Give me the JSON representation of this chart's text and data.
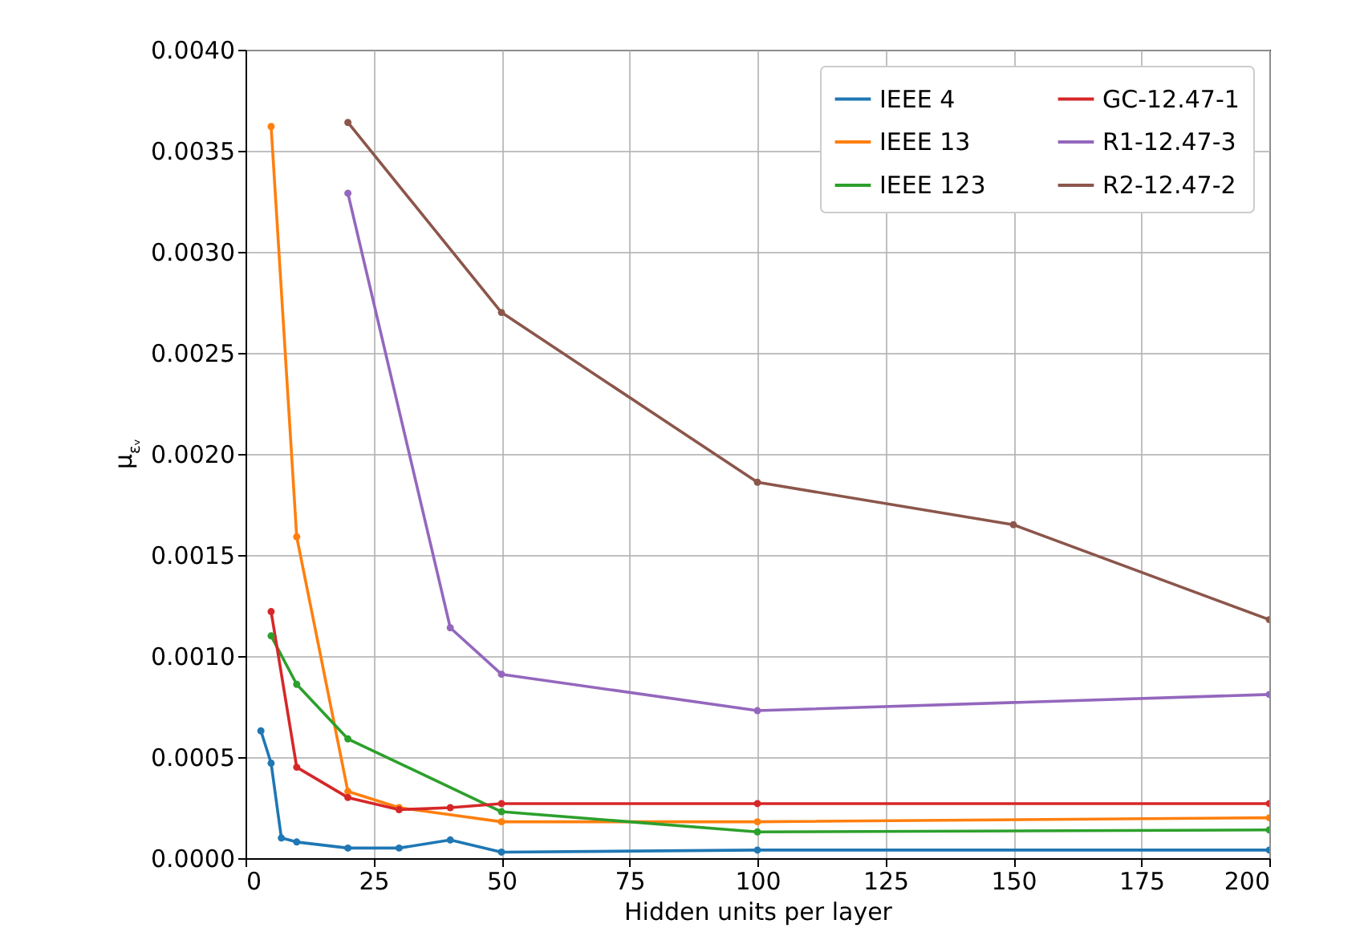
{
  "chart_data": {
    "type": "line",
    "xlabel": "Hidden units per layer",
    "ylabel": "μ$_{εᵥ}$",
    "xlim": [
      0,
      200
    ],
    "xticks": [
      0,
      25,
      50,
      75,
      100,
      125,
      150,
      175,
      200
    ],
    "ylim": [
      0,
      0.004
    ],
    "yticks": [
      {
        "value": 0,
        "label": "0.0000"
      },
      {
        "value": 0.0005,
        "label": "0.0005"
      },
      {
        "value": 0.001,
        "label": "0.0010"
      },
      {
        "value": 0.0015,
        "label": "0.0015"
      },
      {
        "value": 0.002,
        "label": "0.0020"
      },
      {
        "value": 0.0025,
        "label": "0.0025"
      },
      {
        "value": 0.003,
        "label": "0.0030"
      },
      {
        "value": 0.0035,
        "label": "0.0035"
      },
      {
        "value": 0.004,
        "label": "0.0040"
      }
    ],
    "grid": true,
    "legend": "top right",
    "marker": "circle",
    "line_style": "solid",
    "series": [
      {
        "name": "IEEE 4",
        "color": "#1f77b4",
        "x": [
          3,
          5,
          7,
          10,
          20,
          30,
          40,
          50,
          100,
          200
        ],
        "values": [
          0.00063,
          0.00047,
          0.0001,
          8e-05,
          5e-05,
          5e-05,
          9e-05,
          3e-05,
          4e-05,
          4e-05
        ]
      },
      {
        "name": "IEEE 13",
        "color": "#ff7f0e",
        "x": [
          5,
          10,
          20,
          30,
          50,
          100,
          200
        ],
        "values": [
          0.00362,
          0.00159,
          0.00033,
          0.00025,
          0.00018,
          0.00018,
          0.0002
        ]
      },
      {
        "name": "IEEE 123",
        "color": "#2ca02c",
        "x": [
          5,
          10,
          20,
          50,
          100,
          200
        ],
        "values": [
          0.0011,
          0.00086,
          0.00059,
          0.00023,
          0.00013,
          0.00014
        ]
      },
      {
        "name": "GC-12.47-1",
        "color": "#d62728",
        "x": [
          5,
          10,
          20,
          30,
          40,
          50,
          100,
          200
        ],
        "values": [
          0.00122,
          0.00045,
          0.0003,
          0.00024,
          0.00025,
          0.00027,
          0.00027,
          0.00027
        ]
      },
      {
        "name": "R1-12.47-3",
        "color": "#9467bd",
        "x": [
          20,
          40,
          50,
          100,
          200
        ],
        "values": [
          0.00329,
          0.00114,
          0.00091,
          0.00073,
          0.00081
        ]
      },
      {
        "name": "R2-12.47-2",
        "color": "#8c564b",
        "x": [
          20,
          50,
          100,
          150,
          200
        ],
        "values": [
          0.00364,
          0.0027,
          0.00186,
          0.00165,
          0.00118
        ]
      }
    ]
  }
}
